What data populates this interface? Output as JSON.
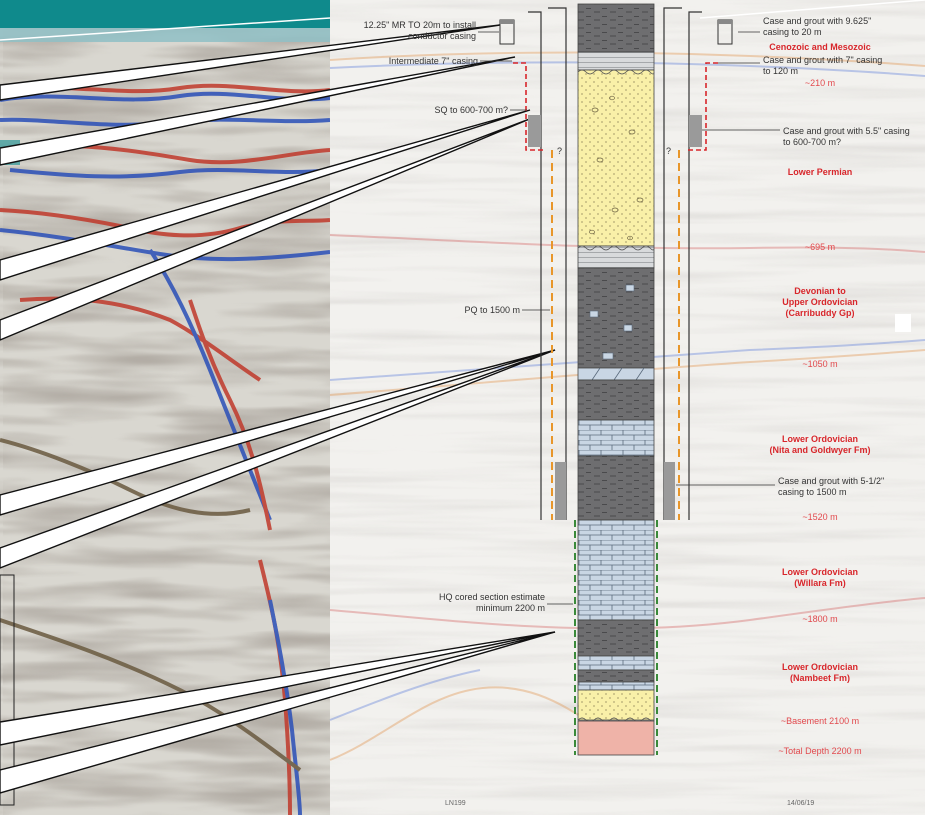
{
  "left_annotations": {
    "conductor": "12.25\" MR TO 20m to install conductor casing",
    "conductor_l1": "12.25\" MR TO 20m to install",
    "conductor_l2": "conductor casing",
    "intermediate": "Intermediate 7\" casing",
    "sq": "SQ to 600-700 m?",
    "pq": "PQ to 1500 m",
    "hq_l1": "HQ cored section estimate",
    "hq_l2": "minimum 2200 m",
    "question_left": "?",
    "question_right": "?"
  },
  "right_annotations": {
    "case_9625_l1": "Case and grout with 9.625\"",
    "case_9625_l2": "casing to 20 m",
    "case_7_l1": "Case and grout with 7\" casing",
    "case_7_l2": "to 120 m",
    "case_55_l1": "Case and grout with 5.5\" casing",
    "case_55_l2": "to 600-700 m?",
    "case_512_l1": "Case and grout with 5-1/2\"",
    "case_512_l2": "casing to 1500 m"
  },
  "formations": [
    {
      "name_l1": "Cenozoic and Mesozoic",
      "name_l2": ""
    },
    {
      "name_l1": "Lower Permian",
      "name_l2": ""
    },
    {
      "name_l1": "Devonian to",
      "name_l2": "Upper Ordovician",
      "name_l3": "(Carribuddy Gp)"
    },
    {
      "name_l1": "Lower Ordovician",
      "name_l2": "(Nita and Goldwyer Fm)"
    },
    {
      "name_l1": "Lower Ordovician",
      "name_l2": "(Willara Fm)"
    },
    {
      "name_l1": "Lower Ordovician",
      "name_l2": "(Nambeet Fm)"
    }
  ],
  "depths": {
    "d210": "~210 m",
    "d695": "~695 m",
    "d1050": "~1050 m",
    "d1520": "~1520 m",
    "d1800": "~1800 m",
    "basement": "~Basement 2100 m",
    "total": "~Total Depth 2200 m"
  },
  "footer": {
    "line_id": "LN199",
    "date": "14/06/19"
  },
  "colors": {
    "formation_red": "#d8262b",
    "casing_orange": "#e8962a",
    "hq_green": "#3a8a3a",
    "sandstone": "#f9f0a8",
    "shale": "#6e6e70",
    "limestone": "#c9d6e4",
    "basement": "#efb3a8",
    "teal_header": "#0f8a8c"
  }
}
